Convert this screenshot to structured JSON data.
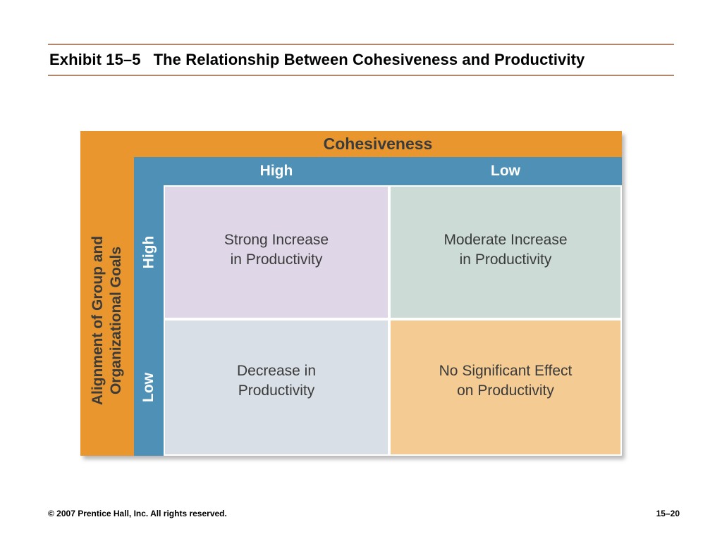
{
  "title": {
    "exhibit": "Exhibit 15–5",
    "text": "The Relationship Between Cohesiveness and Productivity"
  },
  "matrix": {
    "top_axis_label": "Cohesiveness",
    "left_axis_label_line1": "Alignment of Group and",
    "left_axis_label_line2": "Organizational Goals",
    "columns": [
      {
        "label": "High"
      },
      {
        "label": "Low"
      }
    ],
    "rows": [
      {
        "label": "High"
      },
      {
        "label": "Low"
      }
    ],
    "cells": [
      {
        "line1": "Strong Increase",
        "line2": "in Productivity"
      },
      {
        "line1": "Moderate Increase",
        "line2": "in Productivity"
      },
      {
        "line1": "Decrease in",
        "line2": "Productivity"
      },
      {
        "line1": "No Significant Effect",
        "line2": "on Productivity"
      }
    ]
  },
  "colors": {
    "orange_band": "#e8962d",
    "blue_band": "#4e90b6",
    "cell_high_high": "#dfd6e8",
    "cell_high_low": "#ccdbd5",
    "cell_low_high": "#d9dfe6",
    "cell_low_low": "#f4cb93",
    "title_rule": "#b2866a"
  },
  "footer": {
    "copyright": "© 2007 Prentice Hall, Inc. All rights reserved.",
    "page_number": "15–20"
  }
}
